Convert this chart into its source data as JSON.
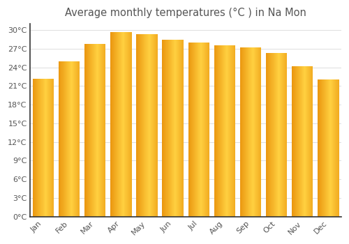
{
  "title": "Average monthly temperatures (°C ) in Na Mon",
  "months": [
    "Jan",
    "Feb",
    "Mar",
    "Apr",
    "May",
    "Jun",
    "Jul",
    "Aug",
    "Sep",
    "Oct",
    "Nov",
    "Dec"
  ],
  "temperatures": [
    22.2,
    25.0,
    27.8,
    29.7,
    29.3,
    28.5,
    28.0,
    27.5,
    27.2,
    26.3,
    24.2,
    22.0
  ],
  "bar_color_main": "#FFA500",
  "bar_color_light": "#FFD000",
  "background_color": "#FFFFFF",
  "plot_bg_color": "#FFFFFF",
  "grid_color": "#DDDDDD",
  "text_color": "#555555",
  "spine_color": "#333333",
  "ylim": [
    0,
    31
  ],
  "yticks": [
    0,
    3,
    6,
    9,
    12,
    15,
    18,
    21,
    24,
    27,
    30
  ],
  "ytick_labels": [
    "0°C",
    "3°C",
    "6°C",
    "9°C",
    "12°C",
    "15°C",
    "18°C",
    "21°C",
    "24°C",
    "27°C",
    "30°C"
  ],
  "title_fontsize": 10.5,
  "tick_fontsize": 8,
  "bar_width": 0.82,
  "figsize": [
    5.0,
    3.5
  ],
  "dpi": 100
}
